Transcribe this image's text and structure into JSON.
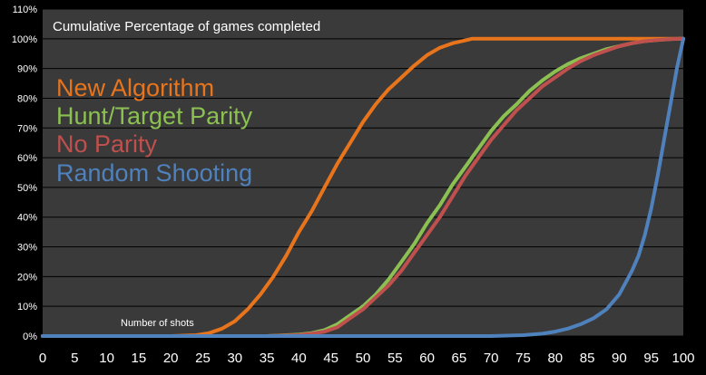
{
  "chart_data": {
    "type": "line",
    "title": "Cumulative Percentage of games completed",
    "xlabel": "Number of shots",
    "ylabel": "",
    "xlim": [
      0,
      100
    ],
    "ylim": [
      0,
      110
    ],
    "x_ticks": [
      "0",
      "5",
      "10",
      "15",
      "20",
      "25",
      "30",
      "35",
      "40",
      "45",
      "50",
      "55",
      "60",
      "65",
      "70",
      "75",
      "80",
      "85",
      "90",
      "95",
      "100"
    ],
    "y_ticks": [
      "0%",
      "10%",
      "20%",
      "30%",
      "40%",
      "50%",
      "60%",
      "70%",
      "80%",
      "90%",
      "100%",
      "110%"
    ],
    "grid": true,
    "legend_position": "top-left",
    "series": [
      {
        "name": "New Algorithm",
        "color": "#e8741c",
        "points": [
          [
            0,
            0
          ],
          [
            20,
            0
          ],
          [
            24,
            0.3
          ],
          [
            26,
            1
          ],
          [
            28,
            2.5
          ],
          [
            30,
            5
          ],
          [
            32,
            9
          ],
          [
            34,
            14
          ],
          [
            36,
            20
          ],
          [
            38,
            27
          ],
          [
            40,
            35
          ],
          [
            42,
            42
          ],
          [
            44,
            50
          ],
          [
            46,
            58
          ],
          [
            48,
            65
          ],
          [
            50,
            72
          ],
          [
            52,
            78
          ],
          [
            54,
            83
          ],
          [
            56,
            87
          ],
          [
            58,
            91
          ],
          [
            60,
            94.5
          ],
          [
            62,
            97
          ],
          [
            64,
            98.5
          ],
          [
            66,
            99.5
          ],
          [
            67,
            100
          ],
          [
            100,
            100
          ]
        ]
      },
      {
        "name": "Hunt/Target Parity",
        "color": "#8cc152",
        "points": [
          [
            0,
            0
          ],
          [
            35,
            0
          ],
          [
            40,
            0.5
          ],
          [
            42,
            1
          ],
          [
            44,
            2
          ],
          [
            46,
            4
          ],
          [
            48,
            7
          ],
          [
            50,
            10
          ],
          [
            52,
            14
          ],
          [
            54,
            19
          ],
          [
            56,
            25
          ],
          [
            58,
            31
          ],
          [
            60,
            38
          ],
          [
            62,
            44
          ],
          [
            64,
            51
          ],
          [
            66,
            57
          ],
          [
            68,
            63
          ],
          [
            70,
            69
          ],
          [
            72,
            74
          ],
          [
            74,
            78
          ],
          [
            76,
            82.5
          ],
          [
            78,
            86
          ],
          [
            80,
            89
          ],
          [
            82,
            91.5
          ],
          [
            84,
            93.5
          ],
          [
            86,
            95
          ],
          [
            88,
            96.5
          ],
          [
            90,
            97.5
          ],
          [
            92,
            98.5
          ],
          [
            94,
            99.2
          ],
          [
            96,
            99.6
          ],
          [
            98,
            99.9
          ],
          [
            100,
            100
          ]
        ]
      },
      {
        "name": "No Parity",
        "color": "#c0504d",
        "points": [
          [
            0,
            0
          ],
          [
            35,
            0
          ],
          [
            40,
            0.3
          ],
          [
            42,
            0.8
          ],
          [
            44,
            1.5
          ],
          [
            46,
            3
          ],
          [
            48,
            6
          ],
          [
            50,
            9
          ],
          [
            52,
            13
          ],
          [
            54,
            17
          ],
          [
            56,
            22
          ],
          [
            58,
            28
          ],
          [
            60,
            34
          ],
          [
            62,
            40
          ],
          [
            64,
            47
          ],
          [
            66,
            54
          ],
          [
            68,
            60
          ],
          [
            70,
            66
          ],
          [
            72,
            71
          ],
          [
            74,
            76
          ],
          [
            76,
            80
          ],
          [
            78,
            84
          ],
          [
            80,
            87
          ],
          [
            82,
            90
          ],
          [
            84,
            92.5
          ],
          [
            86,
            94.5
          ],
          [
            88,
            96
          ],
          [
            90,
            97.5
          ],
          [
            92,
            98.5
          ],
          [
            94,
            99.2
          ],
          [
            96,
            99.6
          ],
          [
            98,
            99.9
          ],
          [
            100,
            100
          ]
        ]
      },
      {
        "name": "Random Shooting",
        "color": "#4f81bd",
        "points": [
          [
            0,
            0
          ],
          [
            70,
            0
          ],
          [
            75,
            0.3
          ],
          [
            78,
            0.8
          ],
          [
            80,
            1.5
          ],
          [
            82,
            2.5
          ],
          [
            84,
            4
          ],
          [
            86,
            6
          ],
          [
            88,
            9
          ],
          [
            90,
            14
          ],
          [
            91,
            18
          ],
          [
            92,
            22
          ],
          [
            93,
            27
          ],
          [
            94,
            34
          ],
          [
            95,
            43
          ],
          [
            96,
            54
          ],
          [
            97,
            66
          ],
          [
            98,
            78
          ],
          [
            99,
            90
          ],
          [
            100,
            100
          ]
        ]
      }
    ]
  }
}
